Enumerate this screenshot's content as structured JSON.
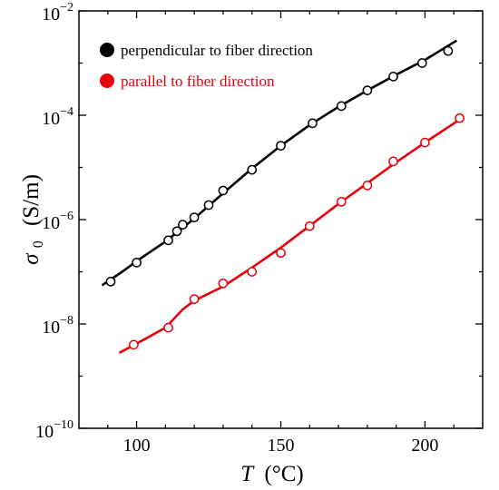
{
  "chart_data": {
    "type": "scatter",
    "x_axis": {
      "label_symbol": "T",
      "label_unit": "(°C)",
      "range": [
        80,
        220
      ],
      "ticks": [
        100,
        150,
        200
      ],
      "tick_labels": [
        "100",
        "150",
        "200"
      ]
    },
    "y_axis": {
      "label_symbol": "σ",
      "label_subscript": "0",
      "label_unit": "(S/m)",
      "scale": "log",
      "range": [
        1e-10,
        0.01
      ],
      "ticks": [
        1e-10,
        1e-08,
        1e-06,
        0.0001,
        0.01
      ],
      "tick_base": "10",
      "tick_exponents": [
        "−10",
        "−8",
        "−6",
        "−4",
        "−2"
      ]
    },
    "legend": {
      "placement": "top-left"
    },
    "grid": false,
    "series": [
      {
        "name": "perpendicular to fiber direction",
        "color": "#000000",
        "markers": [
          [
            91,
            6.5e-08
          ],
          [
            100,
            1.5e-07
          ],
          [
            111,
            4e-07
          ],
          [
            114,
            6e-07
          ],
          [
            116,
            8e-07
          ],
          [
            120,
            1.1e-06
          ],
          [
            125,
            1.9e-06
          ],
          [
            130,
            3.6e-06
          ],
          [
            140,
            9e-06
          ],
          [
            150,
            2.6e-05
          ],
          [
            161,
            7e-05
          ],
          [
            171,
            0.00015
          ],
          [
            180,
            0.0003
          ],
          [
            189,
            0.00055
          ],
          [
            199,
            0.001
          ],
          [
            208,
            0.0017
          ]
        ],
        "fit": [
          [
            88,
            5.5e-08
          ],
          [
            95,
            1e-07
          ],
          [
            100,
            1.6e-07
          ],
          [
            110,
            3.8e-07
          ],
          [
            120,
            1.05e-06
          ],
          [
            130,
            3.2e-06
          ],
          [
            140,
            9.5e-06
          ],
          [
            150,
            2.6e-05
          ],
          [
            160,
            6.5e-05
          ],
          [
            170,
            0.000145
          ],
          [
            180,
            0.0003
          ],
          [
            190,
            0.0006
          ],
          [
            200,
            0.00115
          ],
          [
            211,
            0.0027
          ]
        ]
      },
      {
        "name": "parallel to fiber direction",
        "color": "#e8000b",
        "markers": [
          [
            99,
            4e-09
          ],
          [
            111,
            8.5e-09
          ],
          [
            120,
            3e-08
          ],
          [
            130,
            6e-08
          ],
          [
            140,
            1e-07
          ],
          [
            150,
            2.3e-07
          ],
          [
            160,
            7.5e-07
          ],
          [
            171,
            2.2e-06
          ],
          [
            180,
            4.5e-06
          ],
          [
            189,
            1.3e-05
          ],
          [
            200,
            3e-05
          ],
          [
            212,
            8.8e-05
          ]
        ],
        "fit": [
          [
            94,
            2.8e-09
          ],
          [
            100,
            4.2e-09
          ],
          [
            110,
            8.5e-09
          ],
          [
            116,
            1.9e-08
          ],
          [
            120,
            2.8e-08
          ],
          [
            130,
            5.2e-08
          ],
          [
            140,
            1.2e-07
          ],
          [
            150,
            2.9e-07
          ],
          [
            160,
            7.6e-07
          ],
          [
            170,
            2e-06
          ],
          [
            180,
            5e-06
          ],
          [
            190,
            1.25e-05
          ],
          [
            200,
            3e-05
          ],
          [
            213,
            9e-05
          ]
        ]
      }
    ]
  }
}
